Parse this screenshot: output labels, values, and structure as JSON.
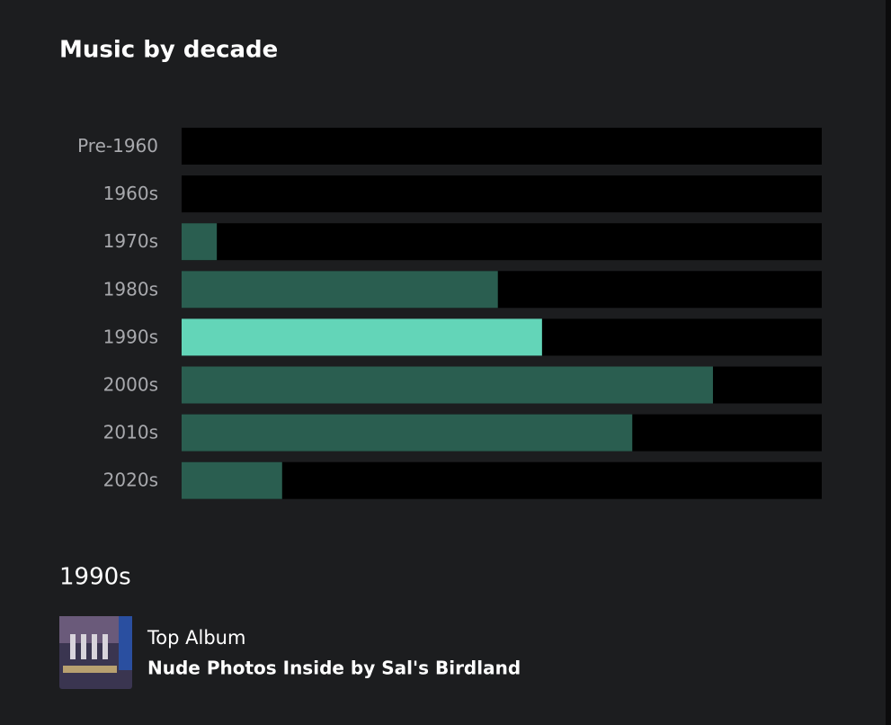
{
  "chart_data": {
    "type": "bar",
    "title": "Music by decade",
    "categories": [
      "Pre-1960",
      "1960s",
      "1970s",
      "1980s",
      "1990s",
      "2000s",
      "2010s",
      "2020s"
    ],
    "values": [
      0,
      0,
      5.5,
      49.4,
      56.3,
      83,
      70.4,
      15.7
    ],
    "xlim": [
      0,
      100
    ],
    "color": "#2a5e50",
    "highlight_color": "#63d5b8",
    "track_color": "#000000"
  },
  "selection": {
    "label": "1990s",
    "caption": "Top Album",
    "album": "Nude Photos Inside by Sal's Birdland"
  }
}
